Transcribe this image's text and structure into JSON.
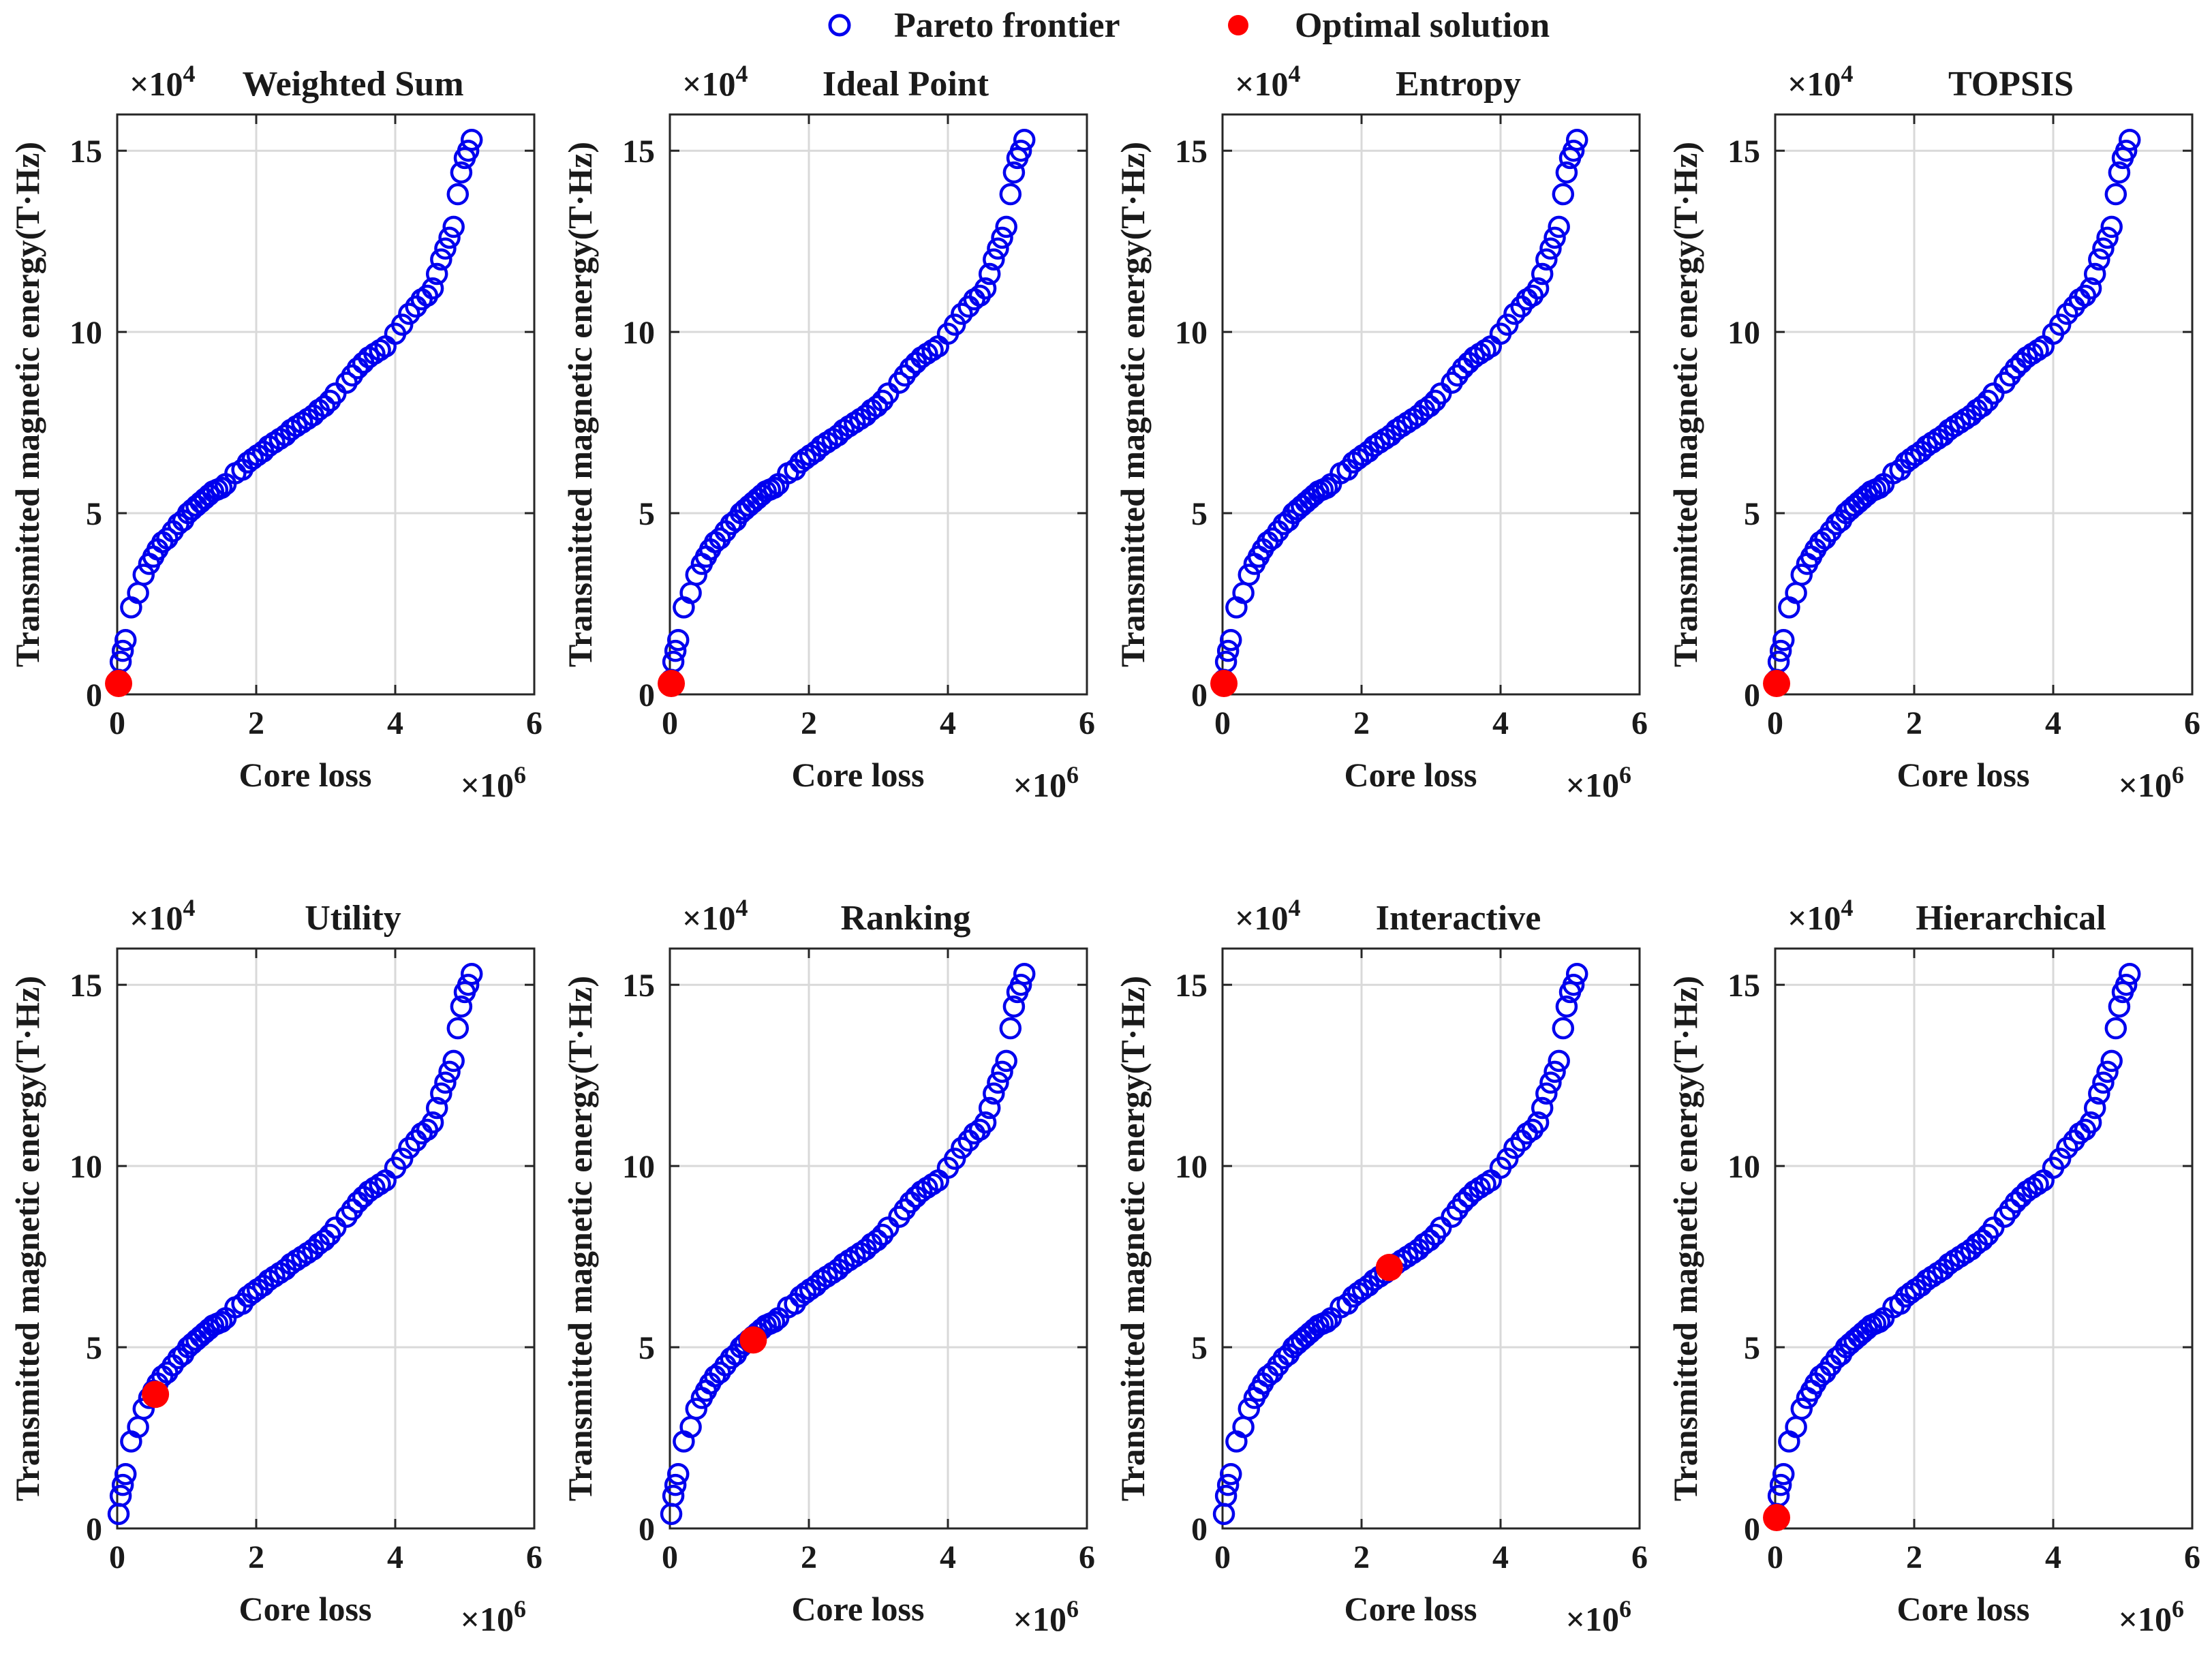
{
  "legend": {
    "pareto_label": "Pareto frontier",
    "optimal_label": "Optimal solution",
    "pareto_color": "#0000ee",
    "optimal_color": "#ff0000"
  },
  "chart_data": {
    "type": "scatter",
    "xlabel": "Core loss",
    "ylabel": "Transmitted magnetic energy(T·Hz)",
    "x_multiplier": "×10",
    "x_multiplier_exp": "6",
    "y_multiplier": "×10",
    "y_multiplier_exp": "4",
    "xlim": [
      0,
      6
    ],
    "ylim": [
      0,
      16
    ],
    "xticks": [
      0,
      2,
      4,
      6
    ],
    "yticks": [
      0,
      5,
      10,
      15
    ],
    "grid": true,
    "pareto_frontier": {
      "x": [
        0.02,
        0.05,
        0.08,
        0.12,
        0.2,
        0.3,
        0.38,
        0.46,
        0.52,
        0.58,
        0.65,
        0.72,
        0.8,
        0.88,
        0.95,
        1.02,
        1.08,
        1.14,
        1.2,
        1.26,
        1.32,
        1.38,
        1.44,
        1.5,
        1.56,
        1.7,
        1.8,
        1.88,
        1.95,
        2.02,
        2.1,
        2.18,
        2.26,
        2.34,
        2.42,
        2.5,
        2.58,
        2.66,
        2.74,
        2.82,
        2.9,
        2.98,
        3.06,
        3.14,
        3.3,
        3.38,
        3.46,
        3.54,
        3.62,
        3.7,
        3.78,
        3.86,
        4.0,
        4.1,
        4.2,
        4.3,
        4.38,
        4.46,
        4.54,
        4.6,
        4.66,
        4.72,
        4.78,
        4.84,
        4.9,
        4.95,
        5.0,
        5.05,
        5.1
      ],
      "y": [
        0.4,
        0.9,
        1.2,
        1.5,
        2.4,
        2.8,
        3.3,
        3.6,
        3.8,
        4.0,
        4.2,
        4.3,
        4.5,
        4.7,
        4.8,
        5.0,
        5.1,
        5.2,
        5.3,
        5.4,
        5.5,
        5.6,
        5.65,
        5.7,
        5.8,
        6.1,
        6.2,
        6.4,
        6.5,
        6.6,
        6.7,
        6.85,
        6.95,
        7.05,
        7.15,
        7.3,
        7.4,
        7.5,
        7.6,
        7.7,
        7.85,
        7.95,
        8.1,
        8.3,
        8.6,
        8.8,
        9.0,
        9.15,
        9.3,
        9.4,
        9.5,
        9.6,
        9.95,
        10.2,
        10.5,
        10.7,
        10.9,
        11.0,
        11.2,
        11.6,
        12.0,
        12.3,
        12.6,
        12.9,
        13.8,
        14.4,
        14.8,
        15.0,
        15.3
      ]
    },
    "panels": [
      {
        "title": "Weighted Sum",
        "optimal": {
          "x": 0.02,
          "y": 0.3
        }
      },
      {
        "title": "Ideal Point",
        "optimal": {
          "x": 0.02,
          "y": 0.3
        }
      },
      {
        "title": "Entropy",
        "optimal": {
          "x": 0.02,
          "y": 0.3
        }
      },
      {
        "title": "TOPSIS",
        "optimal": {
          "x": 0.02,
          "y": 0.3
        }
      },
      {
        "title": "Utility",
        "optimal": {
          "x": 0.55,
          "y": 3.7
        }
      },
      {
        "title": "Ranking",
        "optimal": {
          "x": 1.2,
          "y": 5.2
        }
      },
      {
        "title": "Interactive",
        "optimal": {
          "x": 2.4,
          "y": 7.2
        }
      },
      {
        "title": "Hierarchical",
        "optimal": {
          "x": 0.02,
          "y": 0.3
        }
      }
    ]
  }
}
